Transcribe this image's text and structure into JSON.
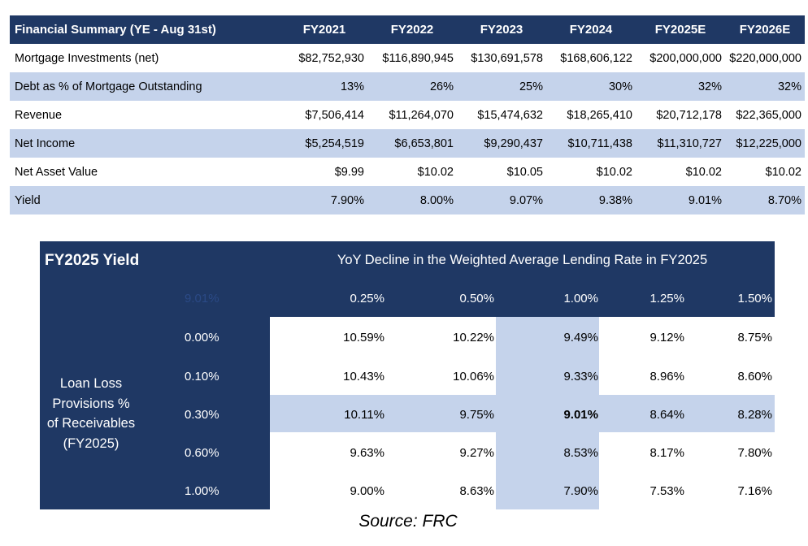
{
  "summary": {
    "header": [
      "Financial Summary (YE - Aug 31st)",
      "FY2021",
      "FY2022",
      "FY2023",
      "FY2024",
      "FY2025E",
      "FY2026E"
    ],
    "rows": [
      [
        "Mortgage Investments (net)",
        "$82,752,930",
        "$116,890,945",
        "$130,691,578",
        "$168,606,122",
        "$200,000,000",
        "$220,000,000"
      ],
      [
        "Debt as % of Mortgage Outstanding",
        "13%",
        "26%",
        "25%",
        "30%",
        "32%",
        "32%"
      ],
      [
        "Revenue",
        "$7,506,414",
        "$11,264,070",
        "$15,474,632",
        "$18,265,410",
        "$20,712,178",
        "$22,365,000"
      ],
      [
        "Net Income",
        "$5,254,519",
        "$6,653,801",
        "$9,290,437",
        "$10,711,438",
        "$11,310,727",
        "$12,225,000"
      ],
      [
        "Net Asset Value",
        "$9.99",
        "$10.02",
        "$10.05",
        "$10.02",
        "$10.02",
        "$10.02"
      ],
      [
        "Yield",
        "7.90%",
        "8.00%",
        "9.07%",
        "9.38%",
        "9.01%",
        "8.70%"
      ]
    ]
  },
  "sensitivity": {
    "title": "FY2025 Yield",
    "subtitle": "YoY Decline in the Weighted Average Lending Rate in FY2025",
    "corner_value": "9.01%",
    "side_label": [
      "Loan Loss",
      "Provisions %",
      "of Receivables",
      "(FY2025)"
    ],
    "col_headers": [
      "0.25%",
      "0.50%",
      "1.00%",
      "1.25%",
      "1.50%"
    ],
    "row_headers": [
      "0.00%",
      "0.10%",
      "0.30%",
      "0.60%",
      "1.00%"
    ],
    "values": [
      [
        "10.59%",
        "10.22%",
        "9.49%",
        "9.12%",
        "8.75%"
      ],
      [
        "10.43%",
        "10.06%",
        "9.33%",
        "8.96%",
        "8.60%"
      ],
      [
        "10.11%",
        "9.75%",
        "9.01%",
        "8.64%",
        "8.28%"
      ],
      [
        "9.63%",
        "9.27%",
        "8.53%",
        "8.17%",
        "7.80%"
      ],
      [
        "9.00%",
        "8.63%",
        "7.90%",
        "7.53%",
        "7.16%"
      ]
    ],
    "highlight_color": "#c5d3eb",
    "header_color": "#1f3864"
  },
  "source": "Source: FRC"
}
